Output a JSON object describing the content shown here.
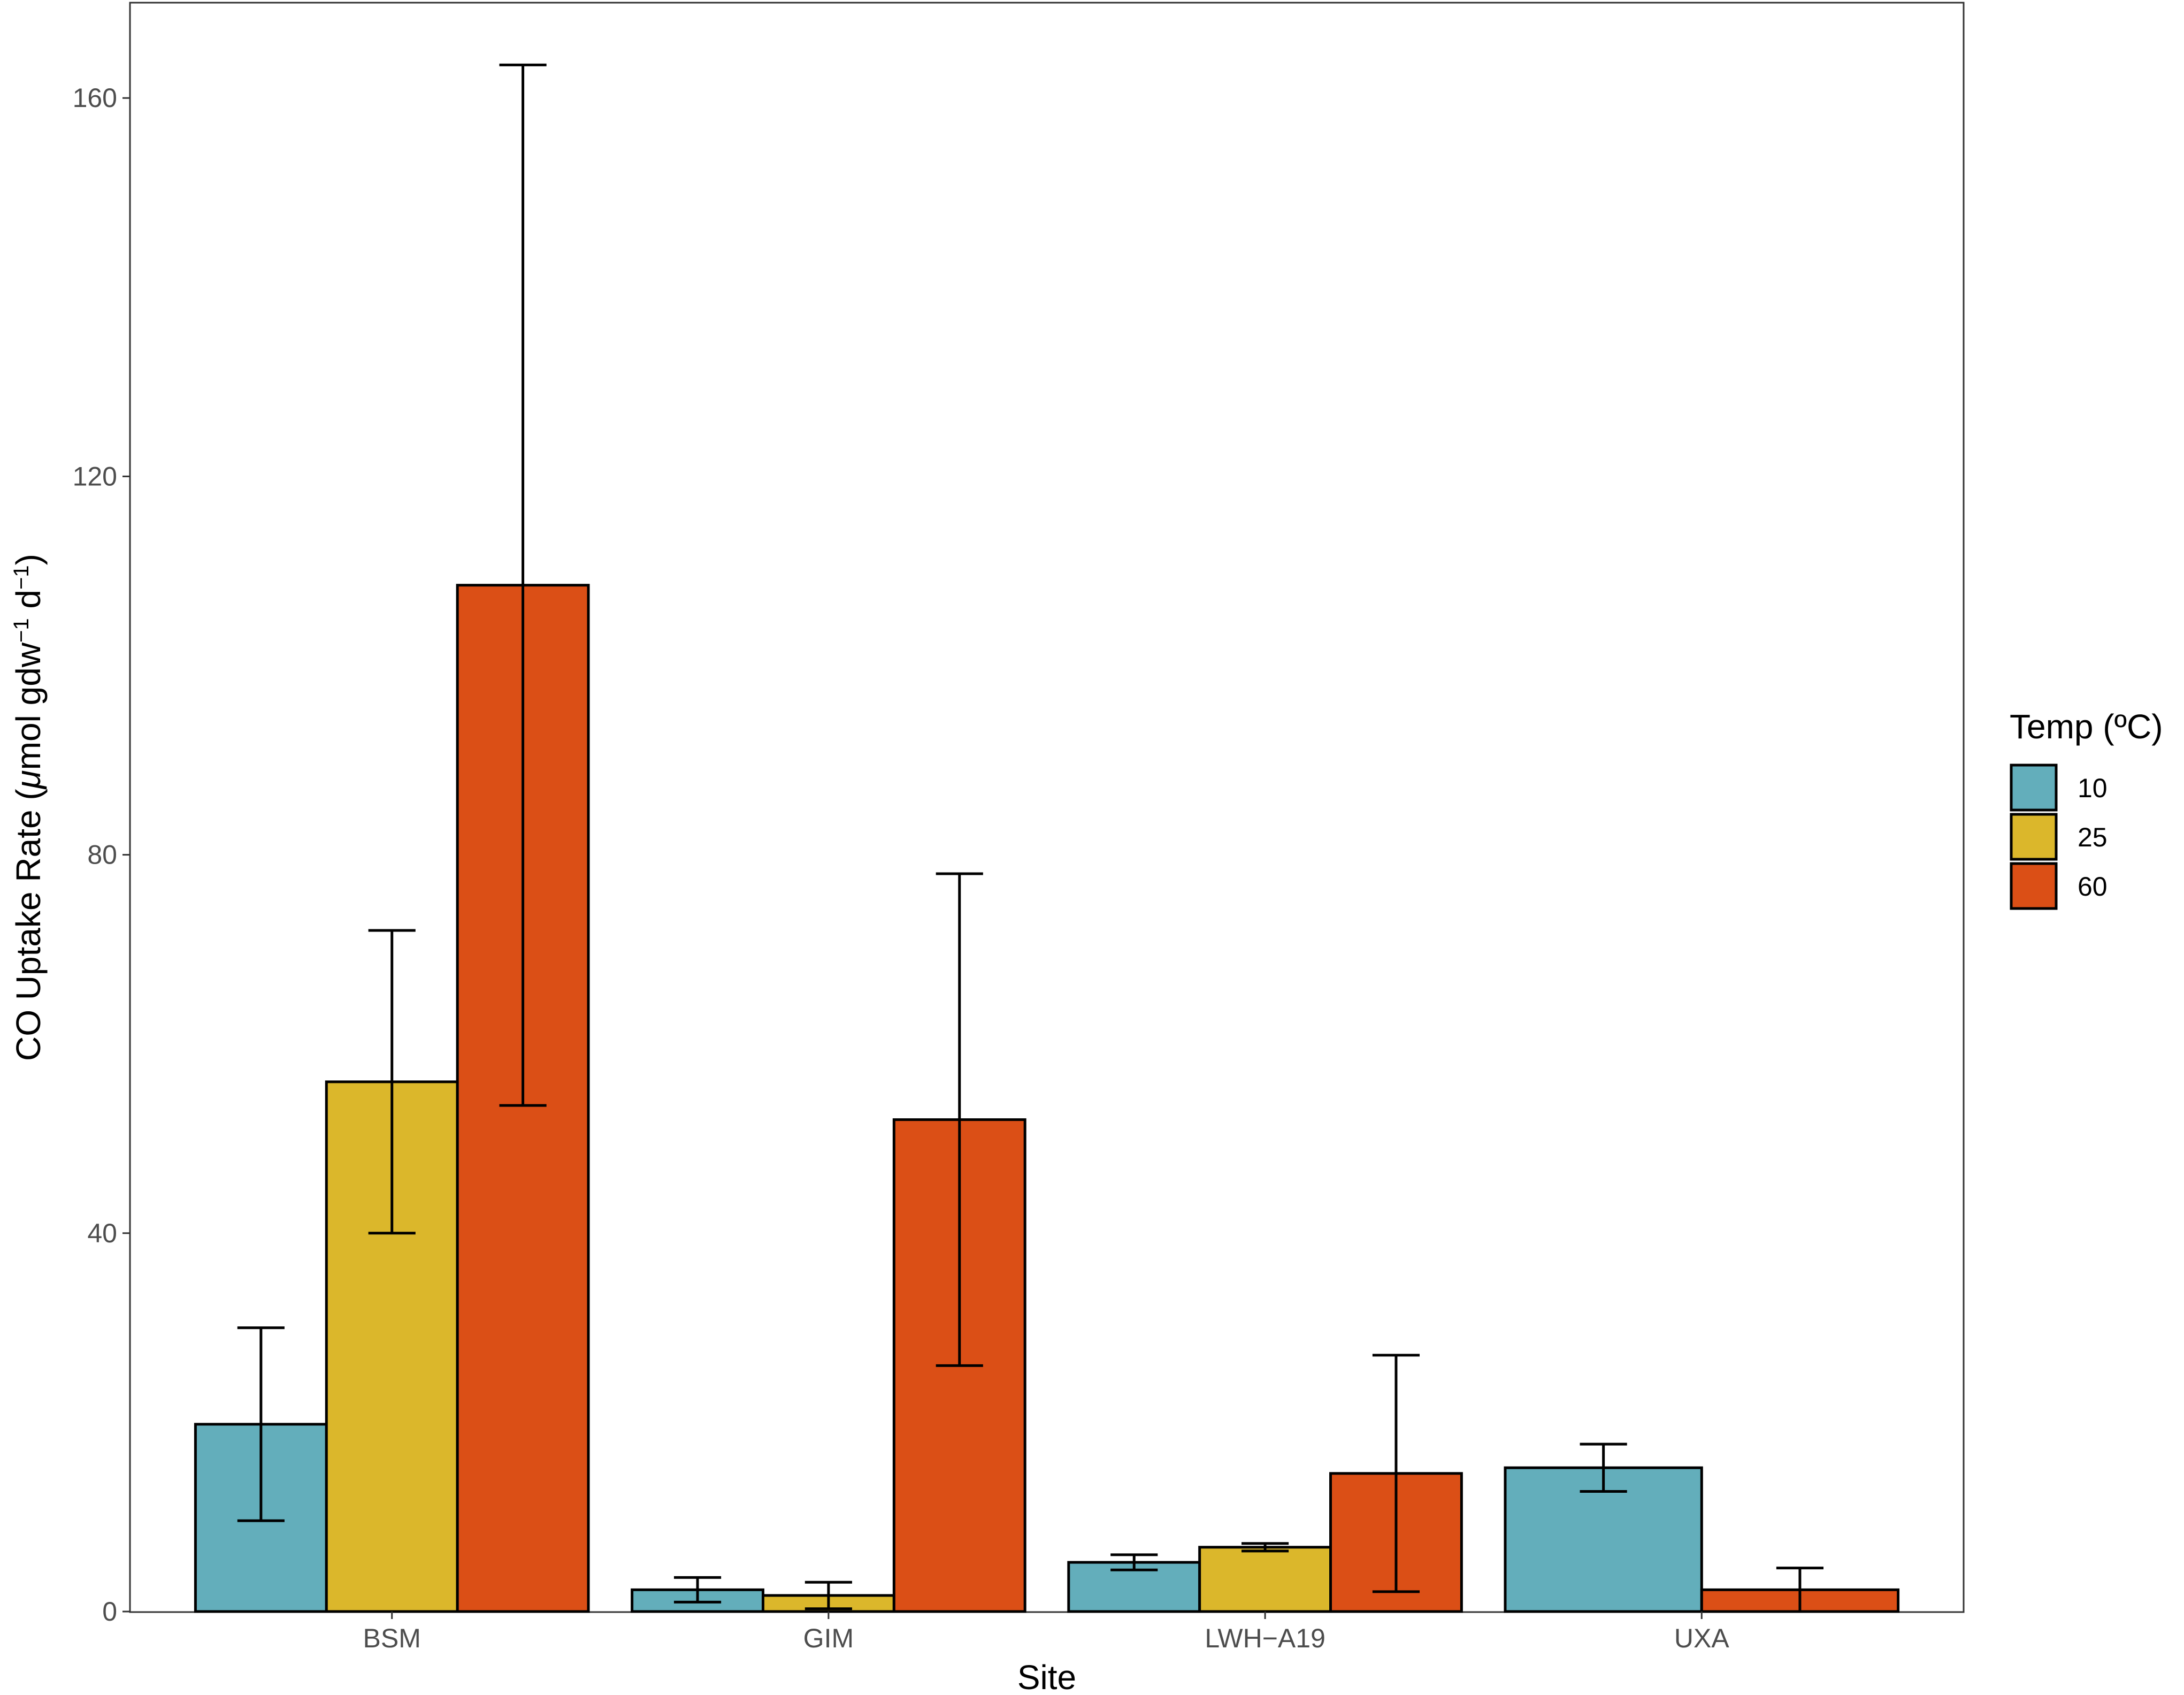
{
  "chart_data": {
    "type": "bar",
    "xlabel": "Site",
    "ylabel": {
      "prefix": "CO Uptake Rate (",
      "mu": "μ",
      "unit_a": "mol gdw",
      "sup_a": "−1",
      "unit_b": " d",
      "sup_b": "−1",
      "suffix": ")"
    },
    "ylim": [
      0,
      170
    ],
    "yticks": [
      0,
      40,
      80,
      120,
      160
    ],
    "categories": [
      "BSM",
      "GIM",
      "LWH−A19",
      "UXA"
    ],
    "legend": {
      "title": "Temp (ºC)",
      "placement": "right"
    },
    "grid": false,
    "series": [
      {
        "name": "10",
        "color": "#63aebb",
        "values": [
          19.8,
          2.3,
          5.2,
          15.2
        ],
        "errors": [
          10.2,
          1.3,
          0.8,
          2.5
        ]
      },
      {
        "name": "25",
        "color": "#dbb72b",
        "values": [
          56.0,
          1.7,
          6.8,
          null
        ],
        "errors": [
          16.0,
          1.4,
          0.4,
          null
        ]
      },
      {
        "name": "60",
        "color": "#db4f16",
        "values": [
          108.5,
          52.0,
          14.6,
          2.3
        ],
        "errors": [
          55.0,
          26.0,
          12.5,
          2.3
        ]
      }
    ]
  }
}
